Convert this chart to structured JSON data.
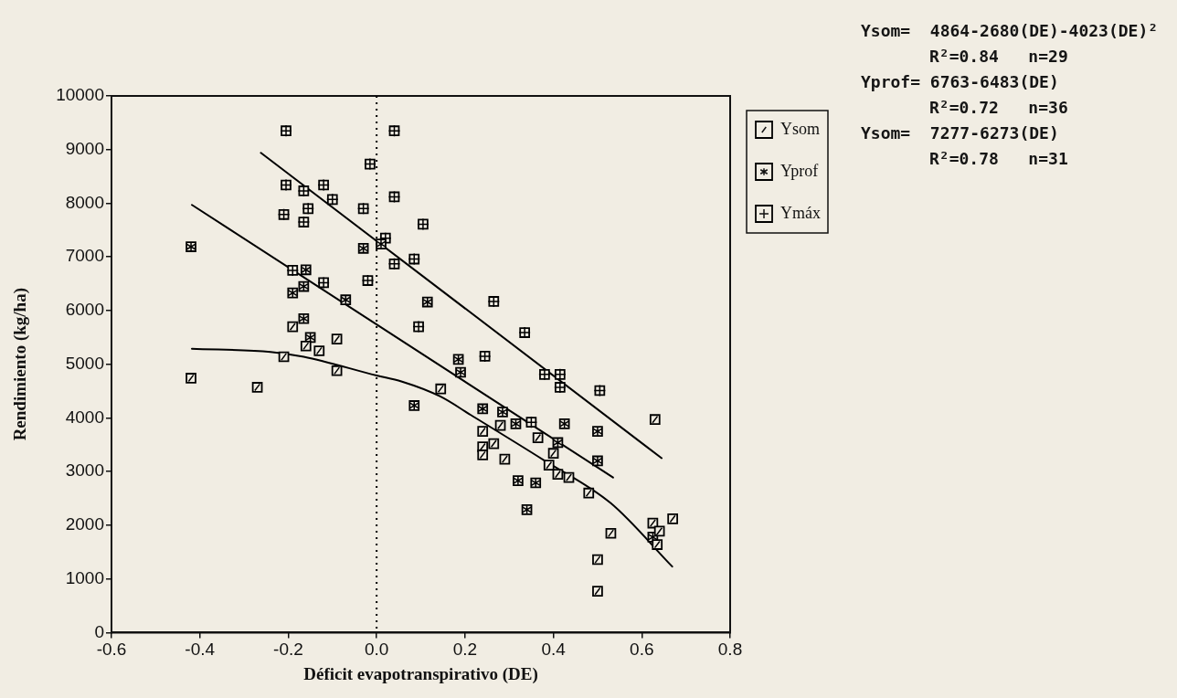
{
  "chart_data": {
    "type": "scatter",
    "xlabel": "Déficit evapotranspirativo (DE)",
    "ylabel": "Rendimiento (kg/ha)",
    "annotations": [
      "Ysom=  4864-2680(DE)-4023(DE)²",
      "R²=0.84   n=29",
      "Yprof= 6763-6483(DE)",
      "R²=0.72   n=36",
      "Ysom=  7277-6273(DE)",
      "R²=0.78   n=31"
    ],
    "xlim": [
      -0.6,
      0.8
    ],
    "xticks": [
      -0.6,
      -0.4,
      -0.2,
      {
        "value": 0,
        "label": "0.0"
      },
      0.2,
      0.4,
      0.6,
      0.8
    ],
    "ylim": [
      0,
      10000
    ],
    "yticks": [
      0,
      1000,
      2000,
      3000,
      4000,
      5000,
      6000,
      7000,
      8000,
      9000,
      10000
    ],
    "grid": false,
    "legend": "top right",
    "marker": "square",
    "ref_lines": [
      {
        "axis": "x",
        "value": 0,
        "line_style": "dotted",
        "color": "#000000"
      }
    ],
    "series": [
      {
        "name": "Ysom",
        "color": "#000000",
        "x": [
          -0.42,
          -0.27,
          -0.21,
          -0.19,
          -0.16,
          -0.13,
          -0.09,
          -0.09,
          0.145,
          0.63,
          0.24,
          0.28,
          0.365,
          0.24,
          0.265,
          0.24,
          0.29,
          0.4,
          0.39,
          0.41,
          0.435,
          0.48,
          0.53,
          0.5,
          0.5,
          0.625,
          0.67,
          0.64,
          0.635
        ],
        "values": [
          4740,
          4570,
          5140,
          5700,
          5340,
          5250,
          5470,
          4880,
          4540,
          3970,
          3750,
          3860,
          3630,
          3460,
          3520,
          3310,
          3230,
          3340,
          3120,
          2950,
          2890,
          2600,
          1850,
          1360,
          770,
          2040,
          2120,
          1890,
          1640
        ]
      },
      {
        "name": "Yprof",
        "color": "#000000",
        "x": [
          -0.03,
          -0.42,
          -0.16,
          -0.165,
          -0.19,
          -0.07,
          -0.165,
          -0.15,
          0.115,
          0.185,
          0.19,
          0.085,
          0.24,
          0.285,
          0.315,
          0.425,
          0.5,
          0.41,
          0.5,
          0.32,
          0.36,
          0.34,
          0.625,
          0.01
        ],
        "values": [
          7160,
          7190,
          6760,
          6450,
          6330,
          6200,
          5850,
          5500,
          6160,
          5090,
          4850,
          4230,
          4170,
          4110,
          3890,
          3890,
          3750,
          3540,
          3200,
          2830,
          2790,
          2290,
          1780,
          7240
        ]
      },
      {
        "name": "Ymáx",
        "color": "#000000",
        "x": [
          -0.21,
          -0.155,
          -0.165,
          -0.1,
          -0.03,
          0.04,
          0.02,
          0.04,
          -0.02,
          -0.19,
          -0.12,
          0.105,
          0.085,
          0.265,
          0.095,
          0.335,
          0.245,
          0.38,
          0.415,
          0.415,
          0.505,
          0.35,
          -0.205,
          0.04,
          -0.015,
          -0.205,
          -0.165,
          -0.12
        ],
        "values": [
          7790,
          7900,
          7650,
          8070,
          7900,
          8120,
          7350,
          6870,
          6560,
          6750,
          6520,
          7610,
          6960,
          6170,
          5700,
          5590,
          5150,
          4810,
          4810,
          4570,
          4510,
          3920,
          9350,
          9350,
          8730,
          8340,
          8230,
          8340
        ]
      },
      {
        "type": "line",
        "color": "#000000",
        "marker": "none",
        "x": [
          -0.262,
          0.645
        ],
        "values": [
          8940,
          3250
        ]
      },
      {
        "type": "line",
        "color": "#000000",
        "marker": "none",
        "x": [
          -0.418,
          0.535
        ],
        "values": [
          7970,
          2890
        ]
      },
      {
        "type": "line",
        "color": "#000000",
        "marker": "none",
        "x": [
          -0.418,
          -0.24,
          -0.165,
          0,
          0.056,
          0.144,
          0.214,
          0.379,
          0.53,
          0.669
        ],
        "values": [
          5290,
          5230,
          5140,
          4790,
          4680,
          4400,
          4050,
          3210,
          2410,
          1230
        ]
      }
    ]
  }
}
